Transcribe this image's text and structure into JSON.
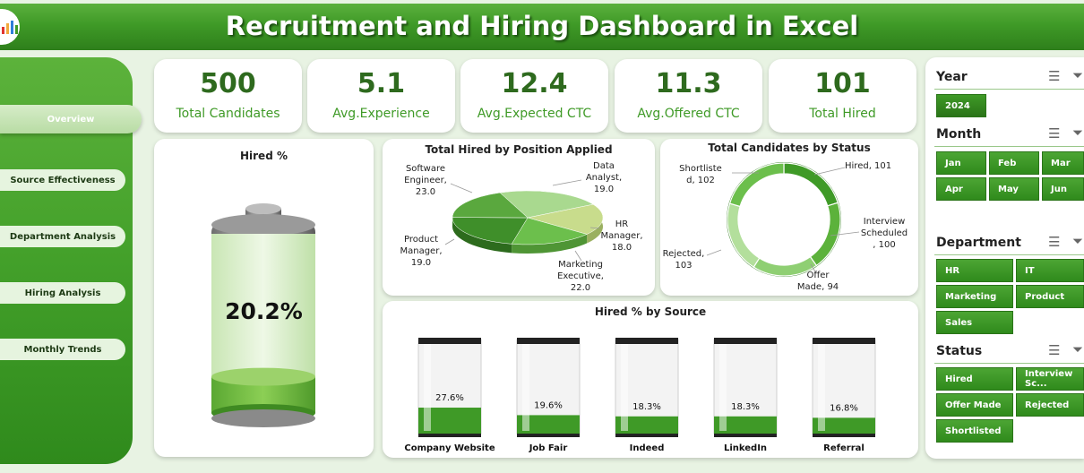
{
  "title": "Recruitment and Hiring Dashboard in Excel",
  "logo_icon": "dashboard-logo-icon",
  "nav": [
    {
      "label": "Overview",
      "active": true
    },
    {
      "label": "Source Effectiveness"
    },
    {
      "label": "Department Analysis"
    },
    {
      "label": "Hiring Analysis"
    },
    {
      "label": "Monthly Trends"
    }
  ],
  "kpis": [
    {
      "value": "500",
      "label": "Total Candidates"
    },
    {
      "value": "5.1",
      "label": "Avg.Experience"
    },
    {
      "value": "12.4",
      "label": "Avg.Expected CTC"
    },
    {
      "value": "11.3",
      "label": "Avg.Offered CTC"
    },
    {
      "value": "101",
      "label": "Total Hired"
    }
  ],
  "hired_pct": {
    "title": "Hired %",
    "value_text": "20.2%",
    "value": 20.2
  },
  "chart_data": [
    {
      "type": "pie",
      "title": "Total Hired by Position Applied",
      "categories": [
        "Software Engineer",
        "Data Analyst",
        "HR Manager",
        "Marketing Executive",
        "Product Manager"
      ],
      "values": [
        23.0,
        19.0,
        18.0,
        22.0,
        19.0
      ],
      "labels": [
        [
          "Software",
          "Engineer,",
          "23.0"
        ],
        [
          "Data",
          "Analyst,",
          "19.0"
        ],
        [
          "HR",
          "Manager,",
          "18.0"
        ],
        [
          "Marketing",
          "Executive,",
          "22.0"
        ],
        [
          "Product",
          "Manager,",
          "19.0"
        ]
      ],
      "colors": [
        "#a9d98f",
        "#c8dc8c",
        "#6cbf4c",
        "#3f8f2a",
        "#5aa83e"
      ]
    },
    {
      "type": "pie",
      "title": "Total Candidates by Status",
      "categories": [
        "Hired",
        "Interview Scheduled",
        "Offer Made",
        "Rejected",
        "Shortlisted"
      ],
      "values": [
        101,
        100,
        94,
        103,
        102
      ],
      "labels": [
        [
          "Hired, 101"
        ],
        [
          "Interview",
          "Scheduled",
          ", 100"
        ],
        [
          "Offer",
          "Made, 94"
        ],
        [
          "Rejected,",
          "103"
        ],
        [
          "Shortliste",
          "d, 102"
        ]
      ],
      "colors": [
        "#3f9a27",
        "#5cb23b",
        "#8fcf73",
        "#b3df9c",
        "#6cbf4c"
      ]
    },
    {
      "type": "bar",
      "title": "Hired % by Source",
      "categories": [
        "Company Website",
        "Job Fair",
        "Indeed",
        "LinkedIn",
        "Referral"
      ],
      "values": [
        27.6,
        19.6,
        18.3,
        18.3,
        16.8
      ],
      "value_labels": [
        "27.6%",
        "19.6%",
        "18.3%",
        "18.3%",
        "16.8%"
      ],
      "ylim": [
        0,
        100
      ]
    }
  ],
  "filters": {
    "year": {
      "title": "Year",
      "items": [
        "2024"
      ]
    },
    "month": {
      "title": "Month",
      "items": [
        "Jan",
        "Feb",
        "Mar",
        "Apr",
        "May",
        "Jun"
      ]
    },
    "department": {
      "title": "Department",
      "items": [
        "HR",
        "IT",
        "Marketing",
        "Product",
        "Sales"
      ]
    },
    "status": {
      "title": "Status",
      "items": [
        "Hired",
        "Interview Sc...",
        "Offer Made",
        "Rejected",
        "Shortlisted"
      ]
    }
  },
  "colors": {
    "primary": "#3f9a27",
    "dark": "#2e6a1e",
    "bg": "#e8f3e3"
  }
}
